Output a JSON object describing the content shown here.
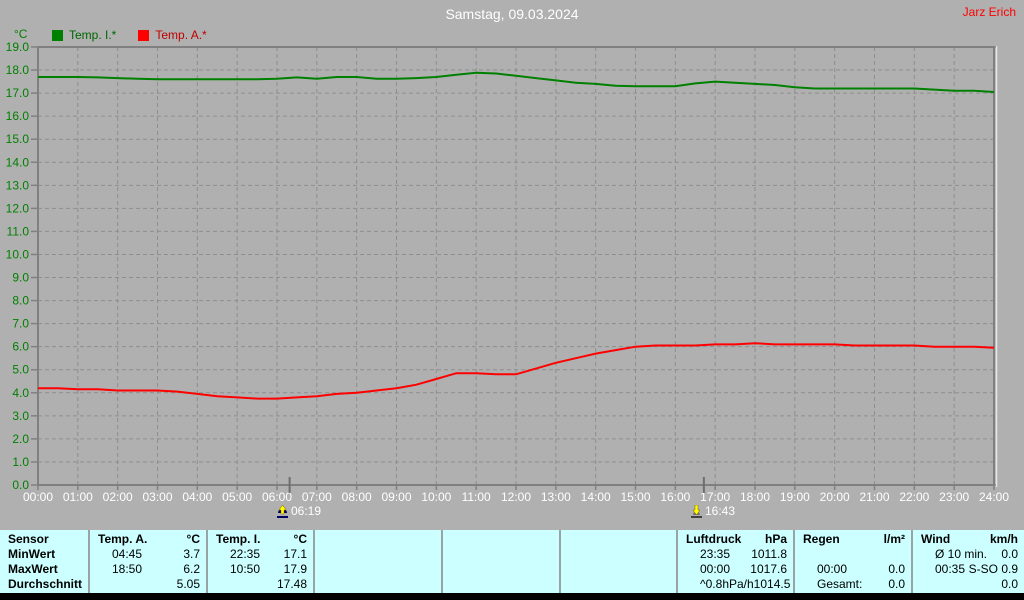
{
  "header": {
    "title": "Samstag, 09.03.2024",
    "author": "Jarz Erich"
  },
  "colors": {
    "background": "#b0b0b0",
    "plot_frame": "#808080",
    "grid": "#8e8e8e",
    "temp_i_line": "#008000",
    "temp_a_line": "#ff0000",
    "y_axis_labels": "#008000",
    "x_axis_labels": "#ffffff",
    "title_text": "#ffffff",
    "author_text": "#ff0000",
    "table_background": "#ccffff",
    "bottom_bar": "#000000"
  },
  "chart_data": {
    "type": "line",
    "title": "Samstag, 09.03.2024",
    "ylabel": "°C",
    "xlabel": "",
    "ylim": [
      0,
      19
    ],
    "xlim_hours": [
      0,
      24
    ],
    "grid": true,
    "legend_position": "top-left",
    "x_step_hours": 0.5,
    "y_ticks": [
      "0.0",
      "1.0",
      "2.0",
      "3.0",
      "4.0",
      "5.0",
      "6.0",
      "7.0",
      "8.0",
      "9.0",
      "10.0",
      "11.0",
      "12.0",
      "13.0",
      "14.0",
      "15.0",
      "16.0",
      "17.0",
      "18.0",
      "19.0"
    ],
    "x_ticks": [
      "00:00",
      "01:00",
      "02:00",
      "03:00",
      "04:00",
      "05:00",
      "06:00",
      "07:00",
      "08:00",
      "09:00",
      "10:00",
      "11:00",
      "12:00",
      "13:00",
      "14:00",
      "15:00",
      "16:00",
      "17:00",
      "18:00",
      "19:00",
      "20:00",
      "21:00",
      "22:00",
      "23:00",
      "24:00"
    ],
    "series": [
      {
        "name": "Temp. I.*",
        "color": "#008000",
        "values": [
          17.7,
          17.7,
          17.7,
          17.68,
          17.65,
          17.62,
          17.6,
          17.6,
          17.6,
          17.6,
          17.6,
          17.6,
          17.62,
          17.68,
          17.62,
          17.7,
          17.7,
          17.62,
          17.62,
          17.65,
          17.7,
          17.8,
          17.88,
          17.85,
          17.75,
          17.65,
          17.55,
          17.45,
          17.4,
          17.32,
          17.3,
          17.3,
          17.3,
          17.42,
          17.5,
          17.45,
          17.4,
          17.35,
          17.25,
          17.2,
          17.2,
          17.2,
          17.2,
          17.2,
          17.2,
          17.15,
          17.1,
          17.1,
          17.05
        ]
      },
      {
        "name": "Temp. A.*",
        "color": "#ff0000",
        "values": [
          4.2,
          4.2,
          4.15,
          4.15,
          4.1,
          4.1,
          4.1,
          4.05,
          3.95,
          3.85,
          3.8,
          3.75,
          3.75,
          3.8,
          3.85,
          3.95,
          4.0,
          4.1,
          4.2,
          4.35,
          4.6,
          4.85,
          4.85,
          4.8,
          4.8,
          5.05,
          5.3,
          5.5,
          5.7,
          5.85,
          6.0,
          6.05,
          6.05,
          6.05,
          6.1,
          6.1,
          6.15,
          6.1,
          6.1,
          6.1,
          6.1,
          6.05,
          6.05,
          6.05,
          6.05,
          6.0,
          6.0,
          6.0,
          5.95
        ]
      }
    ],
    "sun_markers": [
      {
        "type": "sunrise",
        "label": "06:19",
        "hour": 6.3167
      },
      {
        "type": "sunset",
        "label": "16:43",
        "hour": 16.7167
      }
    ]
  },
  "stats_table": {
    "row_headers": [
      "Sensor",
      "MinWert",
      "MaxWert",
      "Durchschnitt"
    ],
    "sections": [
      {
        "title": "Temp. A.",
        "unit": "°C",
        "rows": [
          [
            "04:45",
            "3.7"
          ],
          [
            "18:50",
            "6.2"
          ],
          [
            "",
            "5.05"
          ]
        ]
      },
      {
        "title": "Temp. I.",
        "unit": "°C",
        "rows": [
          [
            "22:35",
            "17.1"
          ],
          [
            "10:50",
            "17.9"
          ],
          [
            "",
            "17.48"
          ]
        ]
      },
      {
        "title": "",
        "unit": "",
        "rows": [
          [
            "",
            ""
          ],
          [
            "",
            ""
          ],
          [
            "",
            ""
          ]
        ]
      },
      {
        "title": "",
        "unit": "",
        "rows": [
          [
            "",
            ""
          ],
          [
            "",
            ""
          ],
          [
            "",
            ""
          ]
        ]
      },
      {
        "title": "",
        "unit": "",
        "rows": [
          [
            "",
            ""
          ],
          [
            "",
            ""
          ],
          [
            "",
            ""
          ]
        ]
      },
      {
        "title": "Luftdruck",
        "unit": "hPa",
        "rows": [
          [
            "23:35",
            "1011.8"
          ],
          [
            "00:00",
            "1017.6"
          ],
          [
            "^0.8hPa/h",
            "1014.5"
          ]
        ]
      },
      {
        "title": "Regen",
        "unit": "l/m²",
        "rows": [
          [
            "",
            ""
          ],
          [
            "00:00",
            "0.0"
          ],
          [
            "Gesamt:",
            "0.0"
          ]
        ]
      },
      {
        "title": "Wind",
        "unit": "km/h",
        "rows": [
          [
            "Ø 10 min.",
            "0.0"
          ],
          [
            "00:35",
            "S-SO 0.9"
          ],
          [
            "",
            "0.0"
          ]
        ]
      }
    ]
  }
}
